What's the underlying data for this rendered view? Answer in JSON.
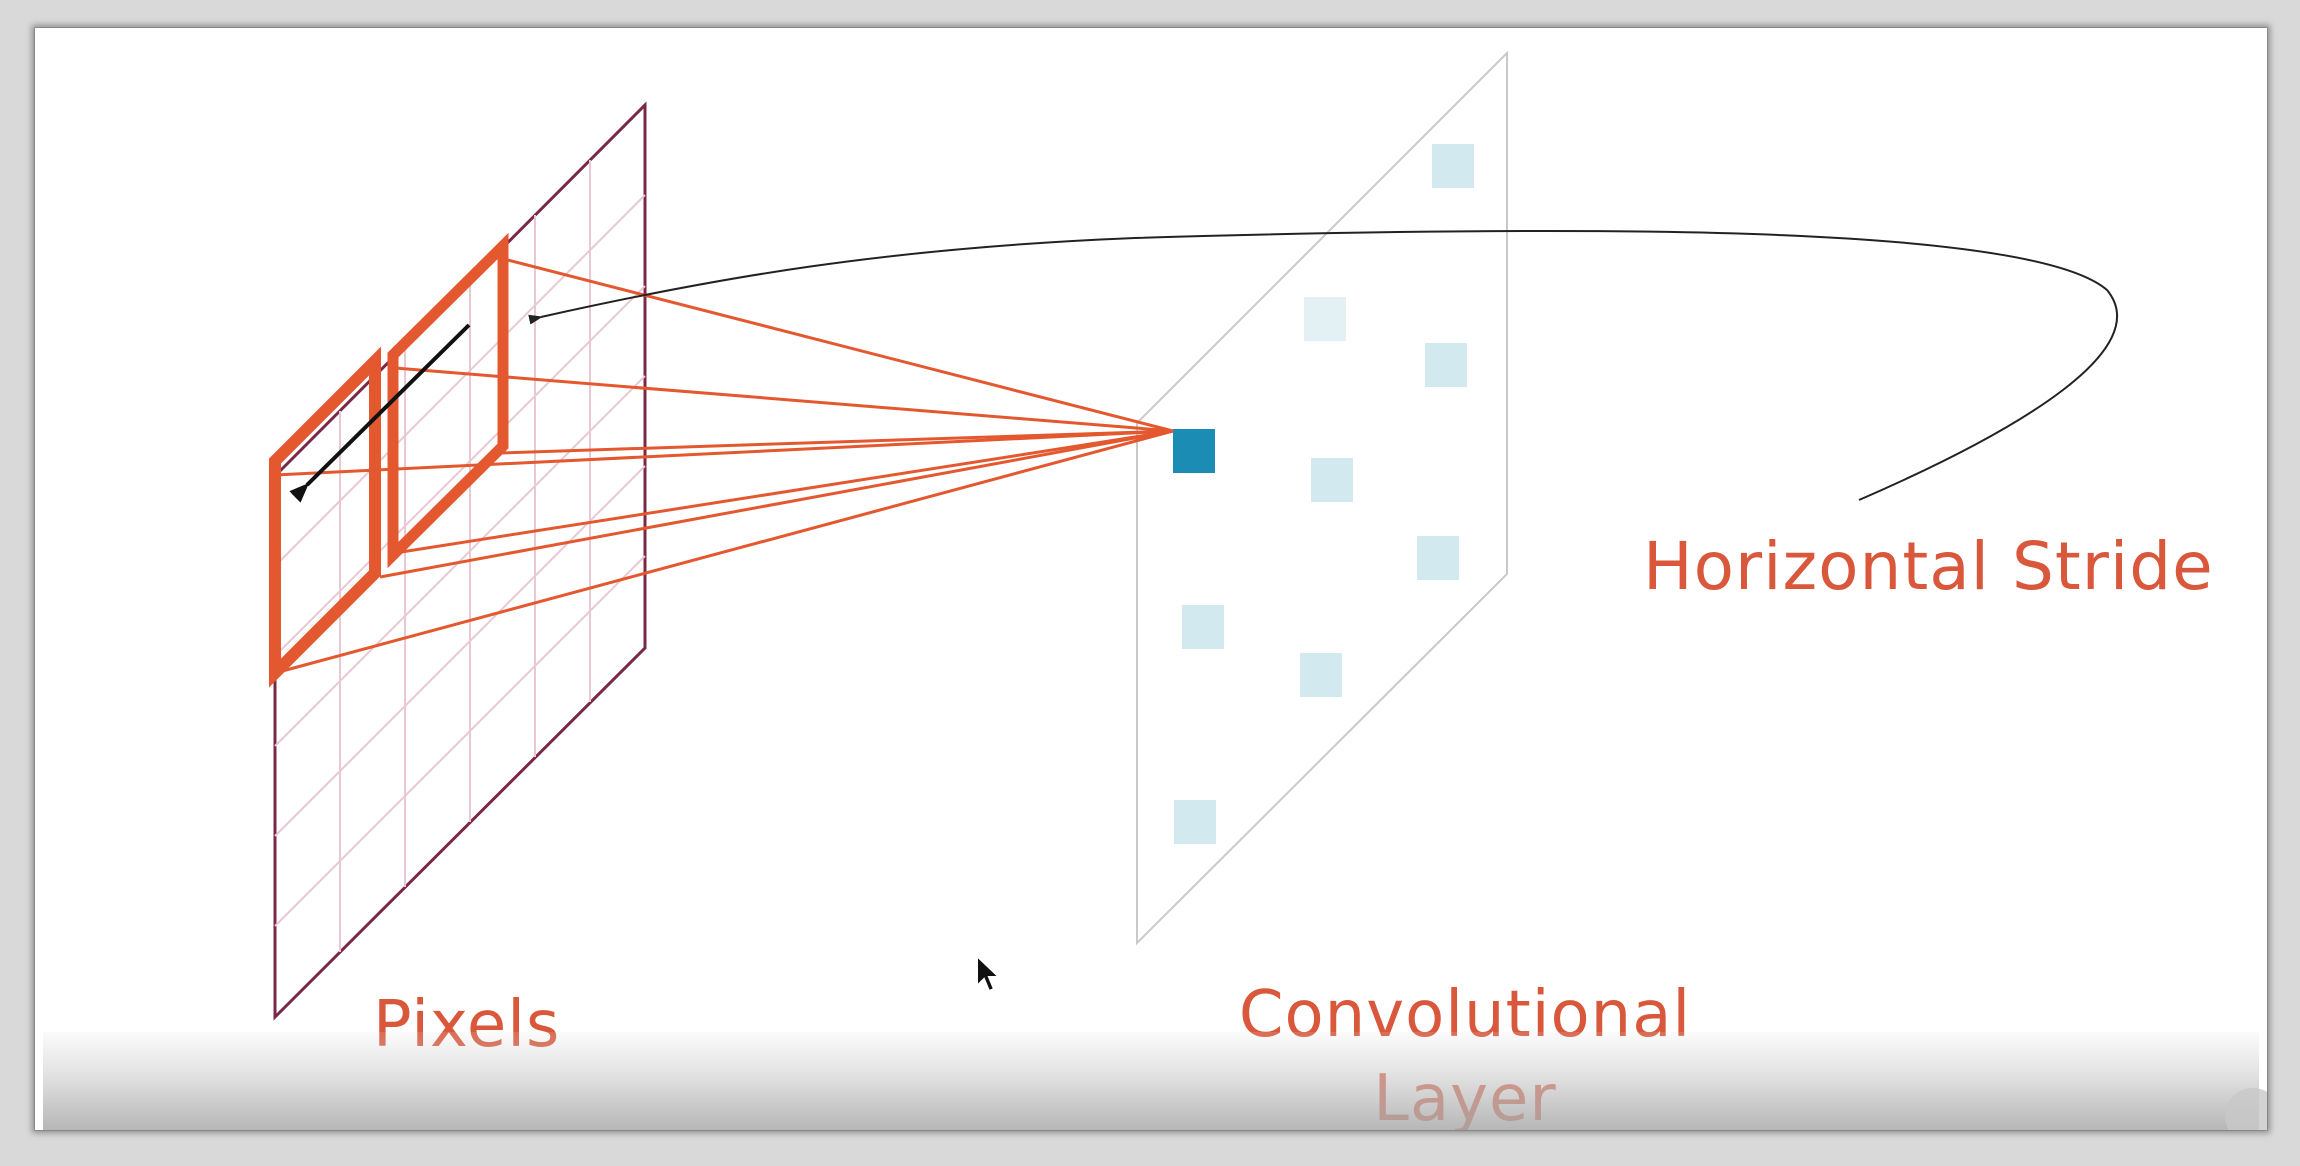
{
  "labels": {
    "horizontal_stride": "Horizontal Stride",
    "pixels": "Pixels",
    "convolutional_layer": "Convolutional Layer"
  },
  "colors": {
    "accent_orange": "#e4582f",
    "pixel_plane_border": "#7a2848",
    "pixel_grid": "#e9c8d2",
    "conv_plane_border": "#c9c9c9",
    "feature_highlight": "#1b8db4",
    "feature_light": "#d2e9f0",
    "arrow": "#222222"
  },
  "icons": {
    "cursor": "mouse-pointer-icon"
  }
}
